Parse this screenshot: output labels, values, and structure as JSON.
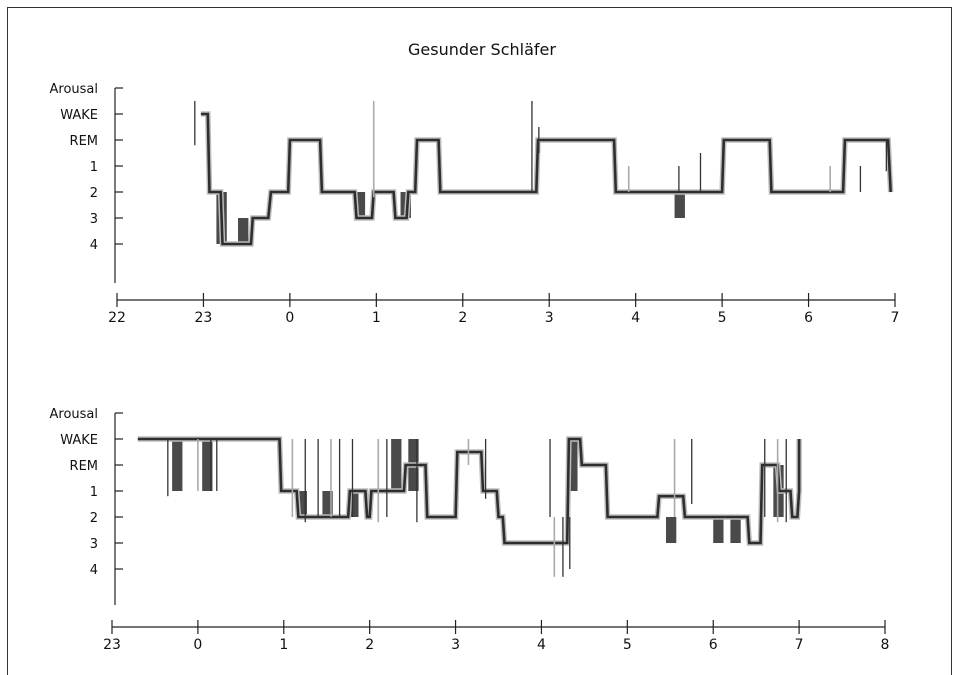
{
  "chart_data": [
    {
      "type": "line",
      "title": "Gesunder Schläfer",
      "ylabels": [
        "Arousal",
        "WAKE",
        "REM",
        "1",
        "2",
        "3",
        "4"
      ],
      "xticks": [
        "22",
        "23",
        "0",
        "1",
        "2",
        "3",
        "4",
        "5",
        "6",
        "7"
      ],
      "xlim": [
        22,
        31
      ],
      "series": [
        {
          "steps": [
            [
              22.97,
              1.0
            ],
            [
              23.05,
              1.0
            ],
            [
              23.07,
              4.0
            ],
            [
              23.2,
              4.0
            ],
            [
              23.22,
              6.0
            ],
            [
              23.55,
              6.0
            ],
            [
              23.57,
              5.0
            ],
            [
              23.75,
              5.0
            ],
            [
              23.78,
              4.0
            ],
            [
              23.98,
              4.0
            ],
            [
              24.0,
              2.0
            ],
            [
              24.35,
              2.0
            ],
            [
              24.37,
              4.0
            ],
            [
              24.75,
              4.0
            ],
            [
              24.77,
              5.0
            ],
            [
              24.95,
              5.0
            ],
            [
              24.97,
              4.0
            ],
            [
              25.2,
              4.0
            ],
            [
              25.22,
              5.0
            ],
            [
              25.35,
              5.0
            ],
            [
              25.37,
              4.0
            ],
            [
              25.45,
              4.0
            ],
            [
              25.47,
              2.0
            ],
            [
              25.72,
              2.0
            ],
            [
              25.74,
              4.0
            ],
            [
              26.85,
              4.0
            ],
            [
              26.87,
              2.0
            ],
            [
              27.75,
              2.0
            ],
            [
              27.77,
              4.0
            ],
            [
              29.0,
              4.0
            ],
            [
              29.02,
              2.0
            ],
            [
              29.55,
              2.0
            ],
            [
              29.57,
              4.0
            ],
            [
              30.4,
              4.0
            ],
            [
              30.42,
              2.0
            ],
            [
              30.92,
              2.0
            ],
            [
              30.95,
              4.0
            ]
          ],
          "bursts": [
            [
              22.9,
              0.5,
              2.2
            ],
            [
              24.97,
              0.5,
              4.2
            ],
            [
              26.8,
              0.5,
              4.0
            ],
            [
              26.88,
              1.5,
              2.5
            ],
            [
              27.92,
              3.0,
              4.0
            ],
            [
              28.5,
              3.0,
              4.0
            ],
            [
              28.75,
              2.5,
              4.0
            ],
            [
              30.25,
              3.0,
              4.0
            ],
            [
              30.6,
              3.0,
              4.0
            ],
            [
              30.9,
              2.0,
              3.2
            ]
          ],
          "blocks": [
            [
              23.15,
              4.0,
              6.0
            ],
            [
              23.4,
              5.0,
              6.0
            ],
            [
              24.75,
              4.0,
              5.0
            ],
            [
              25.28,
              4.0,
              5.0
            ],
            [
              28.45,
              4.0,
              5.0
            ]
          ]
        }
      ]
    },
    {
      "type": "line",
      "ylabels": [
        "Arousal",
        "WAKE",
        "REM",
        "1",
        "2",
        "3",
        "4"
      ],
      "xticks": [
        "23",
        "0",
        "1",
        "2",
        "3",
        "4",
        "5",
        "6",
        "7",
        "8"
      ],
      "xlim": [
        23,
        32
      ],
      "series": [
        {
          "steps": [
            [
              23.3,
              1.0
            ],
            [
              24.95,
              1.0
            ],
            [
              24.97,
              3.0
            ],
            [
              25.15,
              3.0
            ],
            [
              25.17,
              4.0
            ],
            [
              25.75,
              4.0
            ],
            [
              25.77,
              3.0
            ],
            [
              25.95,
              3.0
            ],
            [
              25.97,
              4.0
            ],
            [
              26.0,
              4.0
            ],
            [
              26.02,
              3.0
            ],
            [
              26.4,
              3.0
            ],
            [
              26.42,
              2.0
            ],
            [
              26.65,
              2.0
            ],
            [
              26.67,
              4.0
            ],
            [
              27.0,
              4.0
            ],
            [
              27.02,
              1.5
            ],
            [
              27.3,
              1.5
            ],
            [
              27.32,
              3.0
            ],
            [
              27.48,
              3.0
            ],
            [
              27.5,
              4.0
            ],
            [
              27.55,
              4.0
            ],
            [
              27.57,
              5.0
            ],
            [
              28.3,
              5.0
            ],
            [
              28.32,
              1.0
            ],
            [
              28.45,
              1.0
            ],
            [
              28.47,
              2.0
            ],
            [
              28.75,
              2.0
            ],
            [
              28.77,
              4.0
            ],
            [
              29.35,
              4.0
            ],
            [
              29.37,
              3.2
            ],
            [
              29.65,
              3.2
            ],
            [
              29.67,
              4.0
            ],
            [
              30.4,
              4.0
            ],
            [
              30.42,
              5.0
            ],
            [
              30.55,
              5.0
            ],
            [
              30.57,
              2.0
            ],
            [
              30.75,
              2.0
            ],
            [
              30.77,
              3.0
            ],
            [
              30.9,
              3.0
            ],
            [
              30.92,
              4.0
            ],
            [
              30.98,
              4.0
            ],
            [
              31.0,
              3.0
            ],
            [
              31.0,
              1.0
            ]
          ],
          "bursts": [
            [
              23.65,
              1.0,
              3.2
            ],
            [
              24.0,
              1.0,
              3.0
            ],
            [
              24.15,
              1.0,
              3.0
            ],
            [
              24.22,
              1.0,
              3.0
            ],
            [
              25.1,
              1.0,
              4.0
            ],
            [
              25.25,
              1.0,
              4.2
            ],
            [
              25.4,
              1.0,
              4.0
            ],
            [
              25.55,
              1.0,
              4.0
            ],
            [
              25.65,
              1.0,
              4.0
            ],
            [
              25.8,
              1.0,
              4.0
            ],
            [
              26.1,
              1.0,
              4.2
            ],
            [
              26.2,
              1.0,
              4.0
            ],
            [
              26.55,
              1.0,
              4.2
            ],
            [
              27.15,
              1.0,
              2.0
            ],
            [
              27.35,
              1.0,
              3.3
            ],
            [
              28.1,
              1.0,
              4.0
            ],
            [
              28.15,
              4.0,
              6.3
            ],
            [
              28.25,
              4.0,
              6.3
            ],
            [
              28.33,
              4.0,
              6.0
            ],
            [
              29.55,
              1.0,
              4.0
            ],
            [
              29.75,
              1.0,
              3.5
            ],
            [
              30.6,
              1.0,
              4.0
            ],
            [
              30.75,
              1.0,
              4.2
            ],
            [
              30.85,
              1.0,
              4.2
            ]
          ],
          "blocks": [
            [
              23.7,
              1.0,
              3.0
            ],
            [
              24.05,
              1.0,
              3.0
            ],
            [
              25.15,
              3.0,
              4.0
            ],
            [
              25.45,
              3.0,
              4.0
            ],
            [
              25.75,
              3.0,
              4.0
            ],
            [
              26.25,
              1.0,
              3.0
            ],
            [
              26.45,
              1.0,
              3.0
            ],
            [
              28.3,
              1.0,
              3.0
            ],
            [
              29.45,
              4.0,
              5.0
            ],
            [
              30.0,
              4.0,
              5.0
            ],
            [
              30.2,
              4.0,
              5.0
            ],
            [
              30.7,
              2.0,
              4.0
            ]
          ]
        }
      ]
    }
  ]
}
